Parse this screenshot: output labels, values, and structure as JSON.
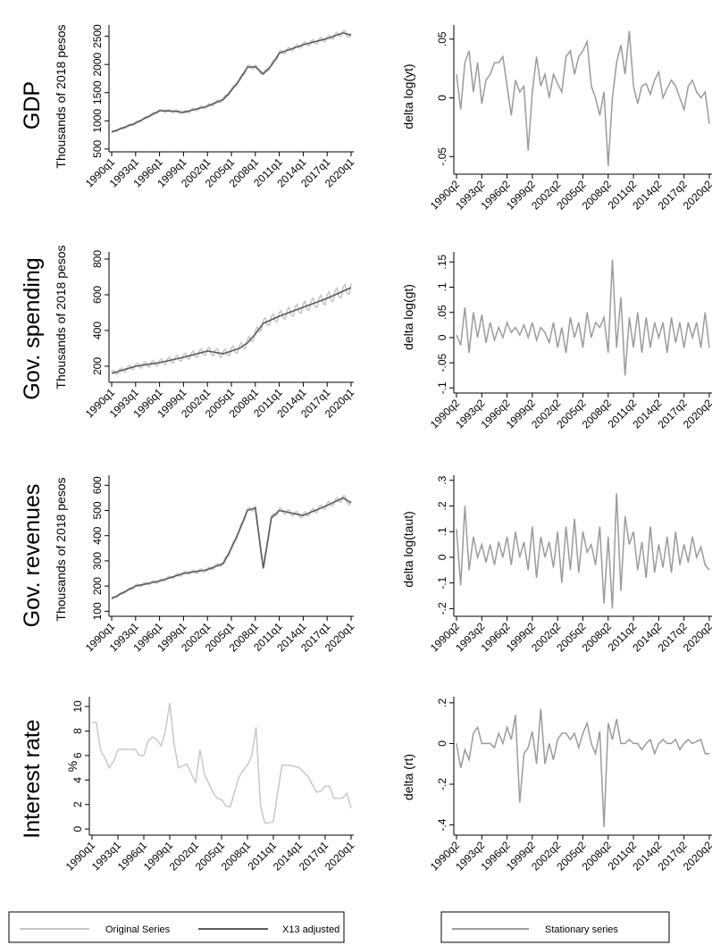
{
  "colors": {
    "original": "#c8c8c8",
    "x13": "#5a5a5a",
    "stationary": "#9b9b9b",
    "axis": "#000000",
    "legend_border": "#000000"
  },
  "rows": [
    {
      "title": "GDP",
      "ylabel": "Thousands of 2018 pesos",
      "dlabel": "delta log(yt)"
    },
    {
      "title": "Gov. spending",
      "ylabel": "Thousands of 2018 pesos",
      "dlabel": "delta log(gt)"
    },
    {
      "title": "Gov. revenues",
      "ylabel": "Thousands of 2018 pesos",
      "dlabel": "delta log(taut)"
    },
    {
      "title": "Interest rate",
      "ylabel": "%",
      "dlabel": "delta (rt)"
    }
  ],
  "legend_left": {
    "original_label": "Original Series",
    "x13_label": "X13 adjusted"
  },
  "legend_right": {
    "stationary_label": "Stationary series"
  },
  "chart_data": [
    {
      "type": "line",
      "title": "GDP",
      "ylabel": "Thousands of 2018 pesos",
      "x_ticks": [
        "1990q1",
        "1993q1",
        "1996q1",
        "1999q1",
        "2002q1",
        "2005q1",
        "2008q1",
        "2011q1",
        "2014q1",
        "2017q1",
        "2020q1"
      ],
      "y_ticks": [
        "500",
        "1000",
        "1500",
        "2000",
        "2500"
      ],
      "ylim": [
        450,
        2700
      ],
      "x_anchor_years": [
        1990,
        1993,
        1996,
        1998,
        1999,
        2002,
        2004,
        2005,
        2006,
        2007,
        2008,
        2009,
        2010,
        2011,
        2014,
        2017,
        2019,
        2020
      ],
      "x13_anchor_values": [
        800,
        960,
        1180,
        1170,
        1150,
        1260,
        1380,
        1540,
        1720,
        1950,
        1960,
        1830,
        1980,
        2200,
        2350,
        2460,
        2560,
        2520
      ],
      "original_seasonal_amplitude": 60,
      "series": [
        {
          "name": "Original Series",
          "role": "original"
        },
        {
          "name": "X13 adjusted",
          "role": "x13"
        }
      ]
    },
    {
      "type": "line",
      "title": "Gov. spending",
      "ylabel": "Thousands of 2018 pesos",
      "x_ticks": [
        "1990q1",
        "1993q1",
        "1996q1",
        "1999q1",
        "2002q1",
        "2005q1",
        "2008q1",
        "2011q1",
        "2014q1",
        "2017q1",
        "2020q1"
      ],
      "y_ticks": [
        "200",
        "400",
        "600",
        "800"
      ],
      "ylim": [
        110,
        840
      ],
      "x_anchor_years": [
        1990,
        1993,
        1996,
        1999,
        2002,
        2004,
        2006,
        2007,
        2008,
        2009,
        2011,
        2014,
        2017,
        2020
      ],
      "x13_anchor_values": [
        160,
        200,
        220,
        250,
        285,
        270,
        300,
        330,
        380,
        440,
        480,
        530,
        580,
        640
      ],
      "original_seasonal_amplitude": 40,
      "series": [
        {
          "name": "Original Series",
          "role": "original"
        },
        {
          "name": "X13 adjusted",
          "role": "x13"
        }
      ]
    },
    {
      "type": "line",
      "title": "Gov. revenues",
      "ylabel": "Thousands of 2018 pesos",
      "x_ticks": [
        "1990q1",
        "1993q1",
        "1996q1",
        "1999q1",
        "2002q1",
        "2005q1",
        "2008q1",
        "2011q1",
        "2014q1",
        "2017q1",
        "2020q1"
      ],
      "y_ticks": [
        "100",
        "200",
        "300",
        "400",
        "500",
        "600"
      ],
      "ylim": [
        80,
        640
      ],
      "x_anchor_years": [
        1990,
        1993,
        1996,
        1999,
        2002,
        2004,
        2005,
        2006,
        2007,
        2008,
        2009,
        2010,
        2011,
        2014,
        2017,
        2019,
        2020
      ],
      "x13_anchor_values": [
        150,
        200,
        220,
        250,
        265,
        290,
        350,
        420,
        500,
        510,
        270,
        470,
        500,
        480,
        520,
        550,
        530
      ],
      "original_seasonal_amplitude": 15,
      "series": [
        {
          "name": "Original Series",
          "role": "original"
        },
        {
          "name": "X13 adjusted",
          "role": "x13"
        }
      ]
    },
    {
      "type": "line",
      "title": "Interest rate",
      "ylabel": "%",
      "x_ticks": [
        "1990q1",
        "1993q1",
        "1996q1",
        "1999q1",
        "2002q1",
        "2005q1",
        "2008q1",
        "2011q1",
        "2014q1",
        "2017q1",
        "2020q1"
      ],
      "y_ticks": [
        "0",
        "2",
        "4",
        "6",
        "8",
        "10"
      ],
      "ylim": [
        -0.5,
        10.8
      ],
      "x": [
        1990.0,
        1990.5,
        1991.0,
        1991.5,
        1992.0,
        1992.5,
        1993.0,
        1994.0,
        1995.0,
        1995.5,
        1996.0,
        1996.5,
        1997.0,
        1997.5,
        1998.0,
        1998.5,
        1999.0,
        1999.5,
        2000.0,
        2001.0,
        2001.5,
        2002.0,
        2002.5,
        2003.0,
        2004.0,
        2004.5,
        2005.0,
        2005.5,
        2006.0,
        2006.5,
        2007.0,
        2007.5,
        2008.0,
        2008.5,
        2009.0,
        2009.5,
        2010.0,
        2010.5,
        2011.0,
        2011.5,
        2012.0,
        2013.0,
        2014.0,
        2015.0,
        2016.0,
        2016.5,
        2017.0,
        2017.5,
        2018.0,
        2019.0,
        2019.5,
        2020.0
      ],
      "values": [
        8.7,
        8.7,
        6.4,
        5.8,
        5.0,
        5.5,
        6.5,
        6.5,
        6.5,
        6.0,
        6.0,
        7.2,
        7.5,
        7.3,
        6.8,
        8.0,
        10.3,
        7.0,
        5.0,
        5.3,
        4.5,
        3.8,
        6.5,
        4.5,
        3.0,
        2.5,
        2.4,
        1.9,
        1.8,
        3.0,
        4.2,
        4.8,
        5.2,
        6.0,
        8.3,
        2.0,
        0.5,
        0.5,
        0.6,
        3.0,
        5.2,
        5.2,
        5.0,
        4.3,
        3.0,
        3.1,
        3.5,
        3.5,
        2.5,
        2.5,
        2.9,
        1.7
      ],
      "series": [
        {
          "name": "Original Series",
          "role": "original"
        }
      ]
    },
    {
      "type": "line",
      "ylabel": "delta log(yt)",
      "x_ticks": [
        "1990q2",
        "1993q2",
        "1996q2",
        "1999q2",
        "2002q2",
        "2005q2",
        "2008q2",
        "2011q2",
        "2014q2",
        "2017q2",
        "2020q2"
      ],
      "y_ticks": [
        "-.05",
        "0",
        ".05"
      ],
      "ylim": [
        -0.065,
        0.062
      ],
      "x": [
        1990.0,
        1990.5,
        1991.0,
        1991.5,
        1992.0,
        1992.5,
        1993.0,
        1993.5,
        1994.0,
        1994.5,
        1995.0,
        1995.5,
        1996.0,
        1996.5,
        1997.0,
        1997.5,
        1998.0,
        1998.5,
        1999.0,
        1999.5,
        2000.0,
        2000.5,
        2001.0,
        2001.5,
        2002.0,
        2002.5,
        2003.0,
        2003.5,
        2004.0,
        2004.5,
        2005.0,
        2005.5,
        2006.0,
        2006.5,
        2007.0,
        2007.5,
        2008.0,
        2008.5,
        2009.0,
        2009.5,
        2010.0,
        2010.5,
        2011.0,
        2011.5,
        2012.0,
        2012.5,
        2013.0,
        2013.5,
        2014.0,
        2014.5,
        2015.0,
        2015.5,
        2016.0,
        2016.5,
        2017.0,
        2017.5,
        2018.0,
        2018.5,
        2019.0,
        2019.5,
        2020.0
      ],
      "values": [
        0.02,
        -0.01,
        0.03,
        0.04,
        0.005,
        0.03,
        -0.005,
        0.015,
        0.02,
        0.03,
        0.03,
        0.035,
        0.01,
        -0.015,
        0.015,
        0.005,
        0.01,
        -0.045,
        0.005,
        0.035,
        0.01,
        0.02,
        0.0,
        0.02,
        0.012,
        0.005,
        0.035,
        0.04,
        0.02,
        0.035,
        0.04,
        0.048,
        0.01,
        0.0,
        -0.015,
        0.005,
        -0.058,
        0.0,
        0.03,
        0.045,
        0.02,
        0.057,
        0.01,
        -0.005,
        0.01,
        0.012,
        0.003,
        0.015,
        0.022,
        0.0,
        0.008,
        0.015,
        0.01,
        0.0,
        -0.01,
        0.01,
        0.015,
        0.005,
        0.0,
        0.005,
        -0.022
      ],
      "series": [
        {
          "name": "Stationary series",
          "role": "stationary"
        }
      ]
    },
    {
      "type": "line",
      "ylabel": "delta log(gt)",
      "x_ticks": [
        "1990q2",
        "1993q2",
        "1996q2",
        "1999q2",
        "2002q2",
        "2005q2",
        "2008q2",
        "2011q2",
        "2014q2",
        "2017q2",
        "2020q2"
      ],
      "y_ticks": [
        "-.1",
        "-.05",
        "0",
        ".05",
        ".1",
        ".15"
      ],
      "ylim": [
        -0.11,
        0.17
      ],
      "x": [
        1990.0,
        1990.5,
        1991.0,
        1991.5,
        1992.0,
        1992.5,
        1993.0,
        1993.5,
        1994.0,
        1994.5,
        1995.0,
        1995.5,
        1996.0,
        1996.5,
        1997.0,
        1997.5,
        1998.0,
        1998.5,
        1999.0,
        1999.5,
        2000.0,
        2000.5,
        2001.0,
        2001.5,
        2002.0,
        2002.5,
        2003.0,
        2003.5,
        2004.0,
        2004.5,
        2005.0,
        2005.5,
        2006.0,
        2006.5,
        2007.0,
        2007.5,
        2008.0,
        2008.5,
        2009.0,
        2009.5,
        2010.0,
        2010.5,
        2011.0,
        2011.5,
        2012.0,
        2012.5,
        2013.0,
        2013.5,
        2014.0,
        2014.5,
        2015.0,
        2015.5,
        2016.0,
        2016.5,
        2017.0,
        2017.5,
        2018.0,
        2018.5,
        2019.0,
        2019.5,
        2020.0
      ],
      "values": [
        0.005,
        -0.015,
        0.06,
        -0.03,
        0.05,
        0.0,
        0.045,
        -0.01,
        0.03,
        -0.005,
        0.02,
        0.0,
        0.03,
        0.01,
        0.02,
        0.005,
        0.025,
        0.0,
        0.03,
        -0.005,
        0.02,
        0.01,
        -0.01,
        0.03,
        -0.02,
        0.02,
        -0.03,
        0.04,
        0.0,
        0.03,
        -0.02,
        0.05,
        0.0,
        0.03,
        0.02,
        0.04,
        -0.03,
        0.155,
        -0.02,
        0.08,
        -0.075,
        0.04,
        -0.02,
        0.05,
        -0.03,
        0.04,
        -0.02,
        0.03,
        0.0,
        0.03,
        -0.03,
        0.04,
        -0.01,
        0.03,
        -0.02,
        0.03,
        0.0,
        0.03,
        -0.02,
        0.05,
        -0.02
      ],
      "series": [
        {
          "name": "Stationary series",
          "role": "stationary"
        }
      ]
    },
    {
      "type": "line",
      "ylabel": "delta log(taut)",
      "x_ticks": [
        "1990q2",
        "1993q2",
        "1996q2",
        "1999q2",
        "2002q2",
        "2005q2",
        "2008q2",
        "2011q2",
        "2014q2",
        "2017q2",
        "2020q2"
      ],
      "y_ticks": [
        "-.2",
        "-.1",
        "0",
        ".1",
        ".2",
        ".3"
      ],
      "ylim": [
        -0.23,
        0.32
      ],
      "x": [
        1990.0,
        1990.5,
        1991.0,
        1991.5,
        1992.0,
        1992.5,
        1993.0,
        1993.5,
        1994.0,
        1994.5,
        1995.0,
        1995.5,
        1996.0,
        1996.5,
        1997.0,
        1997.5,
        1998.0,
        1998.5,
        1999.0,
        1999.5,
        2000.0,
        2000.5,
        2001.0,
        2001.5,
        2002.0,
        2002.5,
        2003.0,
        2003.5,
        2004.0,
        2004.5,
        2005.0,
        2005.5,
        2006.0,
        2006.5,
        2007.0,
        2007.5,
        2008.0,
        2008.5,
        2009.0,
        2009.5,
        2010.0,
        2010.5,
        2011.0,
        2011.5,
        2012.0,
        2012.5,
        2013.0,
        2013.5,
        2014.0,
        2014.5,
        2015.0,
        2015.5,
        2016.0,
        2016.5,
        2017.0,
        2017.5,
        2018.0,
        2018.5,
        2019.0,
        2019.5,
        2020.0
      ],
      "values": [
        0.11,
        -0.11,
        0.2,
        -0.05,
        0.08,
        0.0,
        0.05,
        -0.02,
        0.05,
        -0.03,
        0.06,
        0.0,
        0.08,
        -0.03,
        0.1,
        0.0,
        0.06,
        -0.05,
        0.12,
        -0.08,
        0.08,
        0.0,
        0.06,
        -0.04,
        0.1,
        -0.1,
        0.12,
        -0.05,
        0.15,
        -0.06,
        0.1,
        0.02,
        0.05,
        -0.03,
        0.12,
        -0.18,
        0.08,
        -0.2,
        0.25,
        -0.13,
        0.16,
        0.05,
        0.1,
        -0.05,
        0.06,
        -0.08,
        0.12,
        -0.06,
        0.05,
        -0.04,
        0.08,
        -0.06,
        0.1,
        -0.03,
        0.05,
        -0.02,
        0.08,
        0.0,
        0.04,
        -0.03,
        -0.05
      ],
      "series": [
        {
          "name": "Stationary series",
          "role": "stationary"
        }
      ]
    },
    {
      "type": "line",
      "ylabel": "delta (rt)",
      "x_ticks": [
        "1990q2",
        "1993q2",
        "1996q2",
        "1999q2",
        "2002q2",
        "2005q2",
        "2008q2",
        "2011q2",
        "2014q2",
        "2017q2",
        "2020q2"
      ],
      "y_ticks": [
        "-.4",
        "-.2",
        "0",
        ".2"
      ],
      "ylim": [
        -0.45,
        0.23
      ],
      "x": [
        1990.0,
        1990.5,
        1991.0,
        1991.5,
        1992.0,
        1992.5,
        1993.0,
        1993.5,
        1994.0,
        1994.5,
        1995.0,
        1995.5,
        1996.0,
        1996.5,
        1997.0,
        1997.5,
        1998.0,
        1998.5,
        1999.0,
        1999.5,
        2000.0,
        2000.5,
        2001.0,
        2001.5,
        2002.0,
        2002.5,
        2003.0,
        2003.5,
        2004.0,
        2004.5,
        2005.0,
        2005.5,
        2006.0,
        2006.5,
        2007.0,
        2007.5,
        2008.0,
        2008.5,
        2009.0,
        2009.5,
        2010.0,
        2010.5,
        2011.0,
        2011.5,
        2012.0,
        2012.5,
        2013.0,
        2013.5,
        2014.0,
        2014.5,
        2015.0,
        2015.5,
        2016.0,
        2016.5,
        2017.0,
        2017.5,
        2018.0,
        2018.5,
        2019.0,
        2019.5,
        2020.0
      ],
      "values": [
        0.0,
        -0.12,
        -0.03,
        -0.08,
        0.05,
        0.08,
        0.0,
        0.0,
        0.0,
        -0.02,
        0.05,
        0.0,
        0.08,
        0.02,
        0.14,
        -0.29,
        -0.05,
        -0.02,
        0.06,
        -0.1,
        0.17,
        -0.1,
        0.0,
        -0.08,
        0.02,
        0.05,
        0.05,
        0.02,
        0.05,
        -0.02,
        0.05,
        0.1,
        0.0,
        -0.05,
        0.06,
        -0.41,
        0.1,
        0.02,
        0.12,
        0.0,
        0.0,
        0.02,
        0.0,
        0.0,
        -0.03,
        0.0,
        0.02,
        -0.05,
        0.0,
        0.02,
        0.0,
        0.0,
        0.02,
        -0.03,
        0.0,
        0.02,
        0.0,
        0.01,
        0.02,
        -0.05,
        -0.05
      ],
      "series": [
        {
          "name": "Stationary series",
          "role": "stationary"
        }
      ]
    }
  ]
}
